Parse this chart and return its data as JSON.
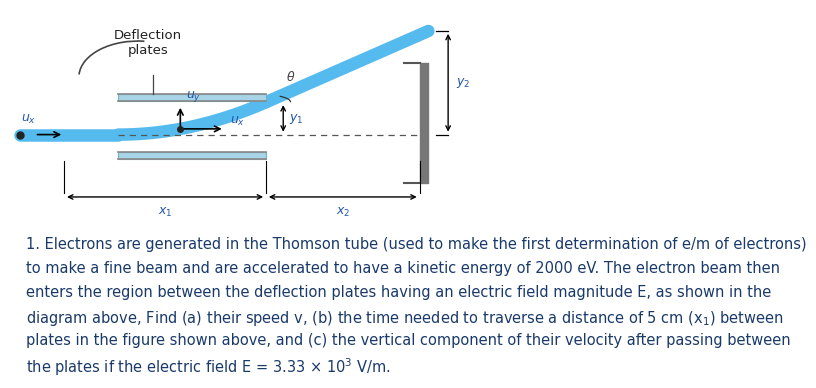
{
  "bg_color": "#ffffff",
  "diagram": {
    "plate_color": "#a8d4e8",
    "plate_edge_color": "#7aafc0",
    "plate_dark_color": "#888888",
    "beam_color": "#55bbee",
    "beam_lw": 9,
    "arrow_color": "#000000",
    "label_color": "#2255aa",
    "wall_color": "#777777",
    "deflection_label": "Deflection\nplates",
    "ux_label_left": "$u_x$",
    "uy_label": "$u_y$",
    "ux_label_mid": "$u_x$",
    "theta_label": "$\\theta$",
    "y2_label": "$y_2$",
    "y1_label": "$y_1$",
    "x1_label": "$x_1$",
    "x2_label": "$x_2$"
  },
  "text": {
    "lines": [
      "1. Electrons are generated in the Thomson tube (used to make the first determination of e/m of electrons)",
      "to make a fine beam and are accelerated to have a kinetic energy of 2000 eV. The electron beam then",
      "enters the region between the deflection plates having an electric field magnitude E, as shown in the",
      "diagram above, Find (a) their speed v, (b) the time needed to traverse a distance of 5 cm (x₁) between",
      "plates in the figure shown above, and (c) the vertical component of their velocity after passing between",
      "the plates if the electric field E = 3.33 × 10³ V/m."
    ],
    "fontsize": 10.5,
    "color": "#1a3a6a"
  }
}
